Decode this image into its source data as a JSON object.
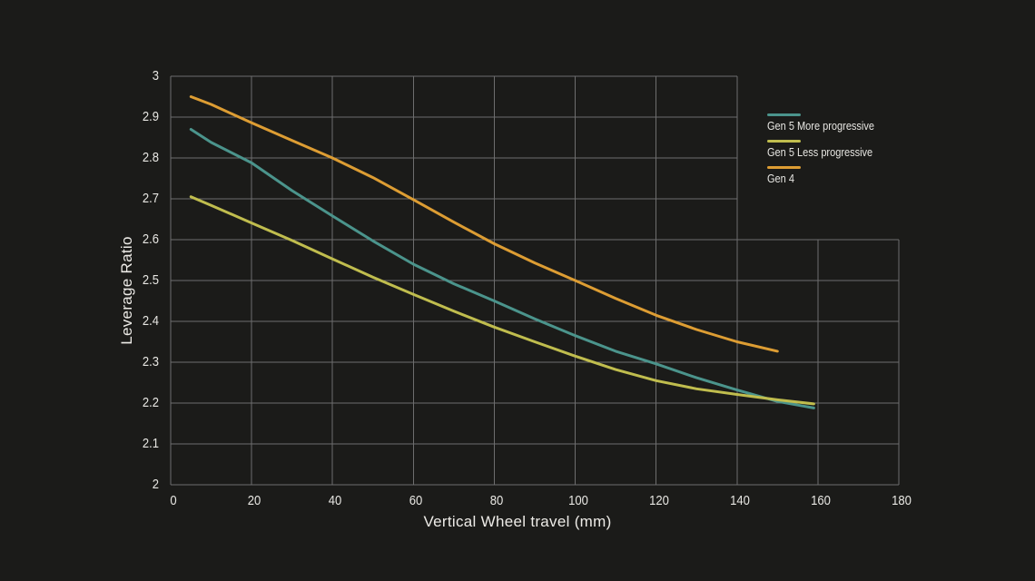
{
  "colors": {
    "background": "#1b1b19",
    "grid": "#6e6e6e",
    "tick_text": "#e7e6e2",
    "axis_title_text": "#edebe7"
  },
  "chart_data": {
    "type": "line",
    "title": "",
    "xlabel": "Vertical Wheel travel (mm)",
    "ylabel": "Leverage Ratio",
    "xlim": [
      0,
      180
    ],
    "ylim": [
      2,
      3
    ],
    "x_ticks": [
      0,
      20,
      40,
      60,
      80,
      100,
      120,
      140,
      160,
      180
    ],
    "y_ticks": [
      2,
      2.1,
      2.2,
      2.3,
      2.4,
      2.5,
      2.6,
      2.7,
      2.8,
      2.9,
      3
    ],
    "grid": "partial: full-height columns 0-140, short columns 140-180 below y=2.6",
    "legend_position": "right",
    "series": [
      {
        "name": "Gen 5 More progressive",
        "color": "#4b948c",
        "x": [
          5,
          10,
          20,
          30,
          40,
          50,
          60,
          70,
          80,
          90,
          100,
          110,
          120,
          130,
          140,
          150,
          159
        ],
        "y": [
          2.87,
          2.838,
          2.788,
          2.72,
          2.658,
          2.597,
          2.54,
          2.492,
          2.45,
          2.406,
          2.365,
          2.327,
          2.296,
          2.262,
          2.232,
          2.204,
          2.188
        ]
      },
      {
        "name": "Gen 5 Less progressive",
        "color": "#c0bd4e",
        "x": [
          5,
          10,
          20,
          30,
          40,
          50,
          60,
          70,
          80,
          90,
          100,
          110,
          120,
          130,
          140,
          150,
          159
        ],
        "y": [
          2.705,
          2.684,
          2.641,
          2.598,
          2.553,
          2.508,
          2.466,
          2.425,
          2.386,
          2.35,
          2.315,
          2.282,
          2.255,
          2.235,
          2.221,
          2.208,
          2.198
        ]
      },
      {
        "name": "Gen 4",
        "color": "#dd9d33",
        "x": [
          5,
          10,
          20,
          30,
          40,
          50,
          60,
          70,
          80,
          90,
          100,
          110,
          120,
          130,
          140,
          150
        ],
        "y": [
          2.95,
          2.931,
          2.886,
          2.843,
          2.8,
          2.752,
          2.698,
          2.643,
          2.59,
          2.543,
          2.5,
          2.456,
          2.415,
          2.38,
          2.35,
          2.327
        ]
      }
    ]
  }
}
